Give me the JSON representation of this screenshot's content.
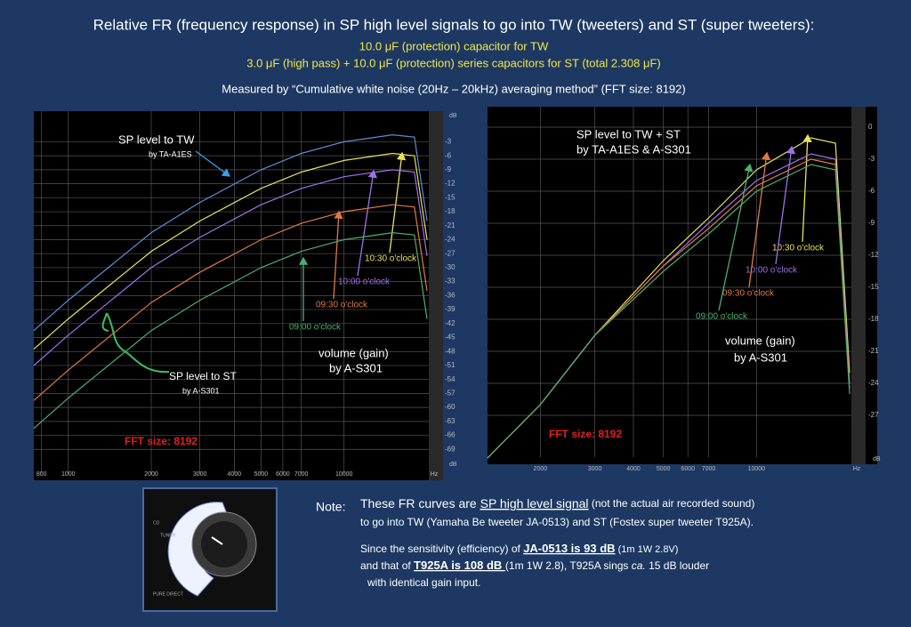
{
  "header": {
    "title": "Relative FR (frequency response) in SP high level signals to go into TW (tweeters) and ST (super tweeters):",
    "line2": "10.0 μF (protection) capacitor for TW",
    "line3": "3.0 μF (high pass) + 10.0 μF (protection) series capacitors for ST (total 2.308 μF)",
    "line4": "Measured by “Cumulative white noise (20Hz – 20kHz) averaging method” (FFT size: 8192)"
  },
  "chart_data": [
    {
      "type": "line",
      "x_log": true,
      "grid": true,
      "x_unit": "Hz",
      "y_unit": "dB",
      "x": [
        750,
        1000,
        2000,
        3000,
        5000,
        7000,
        10000,
        15000,
        18000,
        20000
      ],
      "xlim": [
        750,
        20000
      ],
      "xticks": [
        800,
        1000,
        2000,
        3000,
        4000,
        5000,
        6000,
        7000,
        10000
      ],
      "ylim": [
        -72,
        3
      ],
      "yticks": [
        -3,
        -6,
        -9,
        -12,
        -15,
        -18,
        -21,
        -24,
        -27,
        -30,
        -33,
        -36,
        -39,
        -42,
        -45,
        -48,
        -51,
        -54,
        -57,
        -60,
        -63,
        -66,
        -69
      ],
      "series": [
        {
          "name": "SP level to  TW",
          "color": "#5b8fd6",
          "values": [
            -43.5,
            -37,
            -22.5,
            -16,
            -9,
            -5.5,
            -3,
            -1.5,
            -2,
            -20
          ]
        },
        {
          "name": "10:30 o'clock",
          "color": "#e8e35a",
          "values": [
            -47.5,
            -41,
            -26.5,
            -20,
            -13,
            -9.5,
            -7,
            -5.5,
            -6,
            -24
          ]
        },
        {
          "name": "10:00 o'clock",
          "color": "#a070e8",
          "values": [
            -51,
            -44.5,
            -30,
            -23.5,
            -16.5,
            -13,
            -10.5,
            -9,
            -9.5,
            -27.5
          ]
        },
        {
          "name": "09:30 o'clock",
          "color": "#e07a45",
          "values": [
            -58.5,
            -52,
            -37.5,
            -31,
            -24,
            -20.5,
            -18,
            -16.5,
            -17,
            -35
          ]
        },
        {
          "name": "09:00 o'clock",
          "color": "#4caf6e",
          "values": [
            -64.5,
            -58,
            -43.5,
            -37,
            -30,
            -26.5,
            -24,
            -22.5,
            -23,
            -41
          ]
        }
      ],
      "annotations": [
        "by TA-A1ES",
        "SP level to ST",
        "by  A-S301",
        "volume (gain)",
        "by  A-S301",
        "FFT size: 8192"
      ]
    },
    {
      "type": "line",
      "x_log": true,
      "grid": true,
      "x_unit": "Hz",
      "y_unit": "dB",
      "x": [
        1350,
        2000,
        3000,
        5000,
        7000,
        10000,
        15000,
        18000,
        20000
      ],
      "xlim": [
        1350,
        20000
      ],
      "xticks": [
        2000,
        3000,
        4000,
        5000,
        6000,
        7000,
        10000
      ],
      "ylim": [
        -31,
        1.5
      ],
      "yticks": [
        0,
        -3,
        -6,
        -9,
        -12,
        -15,
        -18,
        -21,
        -24,
        -27
      ],
      "series": [
        {
          "name": "10:30 o'clock",
          "color": "#e8e35a",
          "values": [
            -31,
            -26,
            -19.5,
            -12.5,
            -8.5,
            -4,
            -1,
            -1.5,
            -23
          ]
        },
        {
          "name": "10:00 o'clock",
          "color": "#a070e8",
          "values": [
            -31,
            -26,
            -19.5,
            -13,
            -9,
            -5,
            -2.5,
            -3,
            -24
          ]
        },
        {
          "name": "09:30 o'clock",
          "color": "#e07a45",
          "values": [
            -31,
            -26,
            -19.5,
            -13,
            -9.5,
            -5.5,
            -3,
            -3.5,
            -24.5
          ]
        },
        {
          "name": "09:00 o'clock",
          "color": "#4caf6e",
          "values": [
            -31,
            -26,
            -19.5,
            -13.5,
            -10,
            -6,
            -3.5,
            -4,
            -25
          ]
        }
      ],
      "annotations": [
        "SP level to TW + ST",
        "by TA-A1ES & A-S301",
        "volume (gain)",
        "by  A-S301",
        "FFT size: 8192"
      ]
    }
  ],
  "photo": {
    "labels": [
      "CD",
      "TUNER",
      "PURE DIRECT"
    ]
  },
  "note": {
    "label": "Note:",
    "p1": [
      "These FR curves are ",
      "SP high level signal",
      " (not the actual air recorded sound)"
    ],
    "p1b": [
      "to go into TW (Yamaha Be tweeter JA-0513) and ST (Fostex super tweeter T925A)."
    ],
    "p2": [
      "Since the sensitivity (efficiency) of ",
      "JA-0513 is 93 dB",
      " (1m 1W 2.8V)"
    ],
    "p2b": [
      " and that of ",
      "T925A is 108 dB ",
      "(1m 1W 2.8), T925A sings ",
      "ca.",
      " 15 dB louder"
    ],
    "p2c": [
      "with identical gain input."
    ]
  }
}
